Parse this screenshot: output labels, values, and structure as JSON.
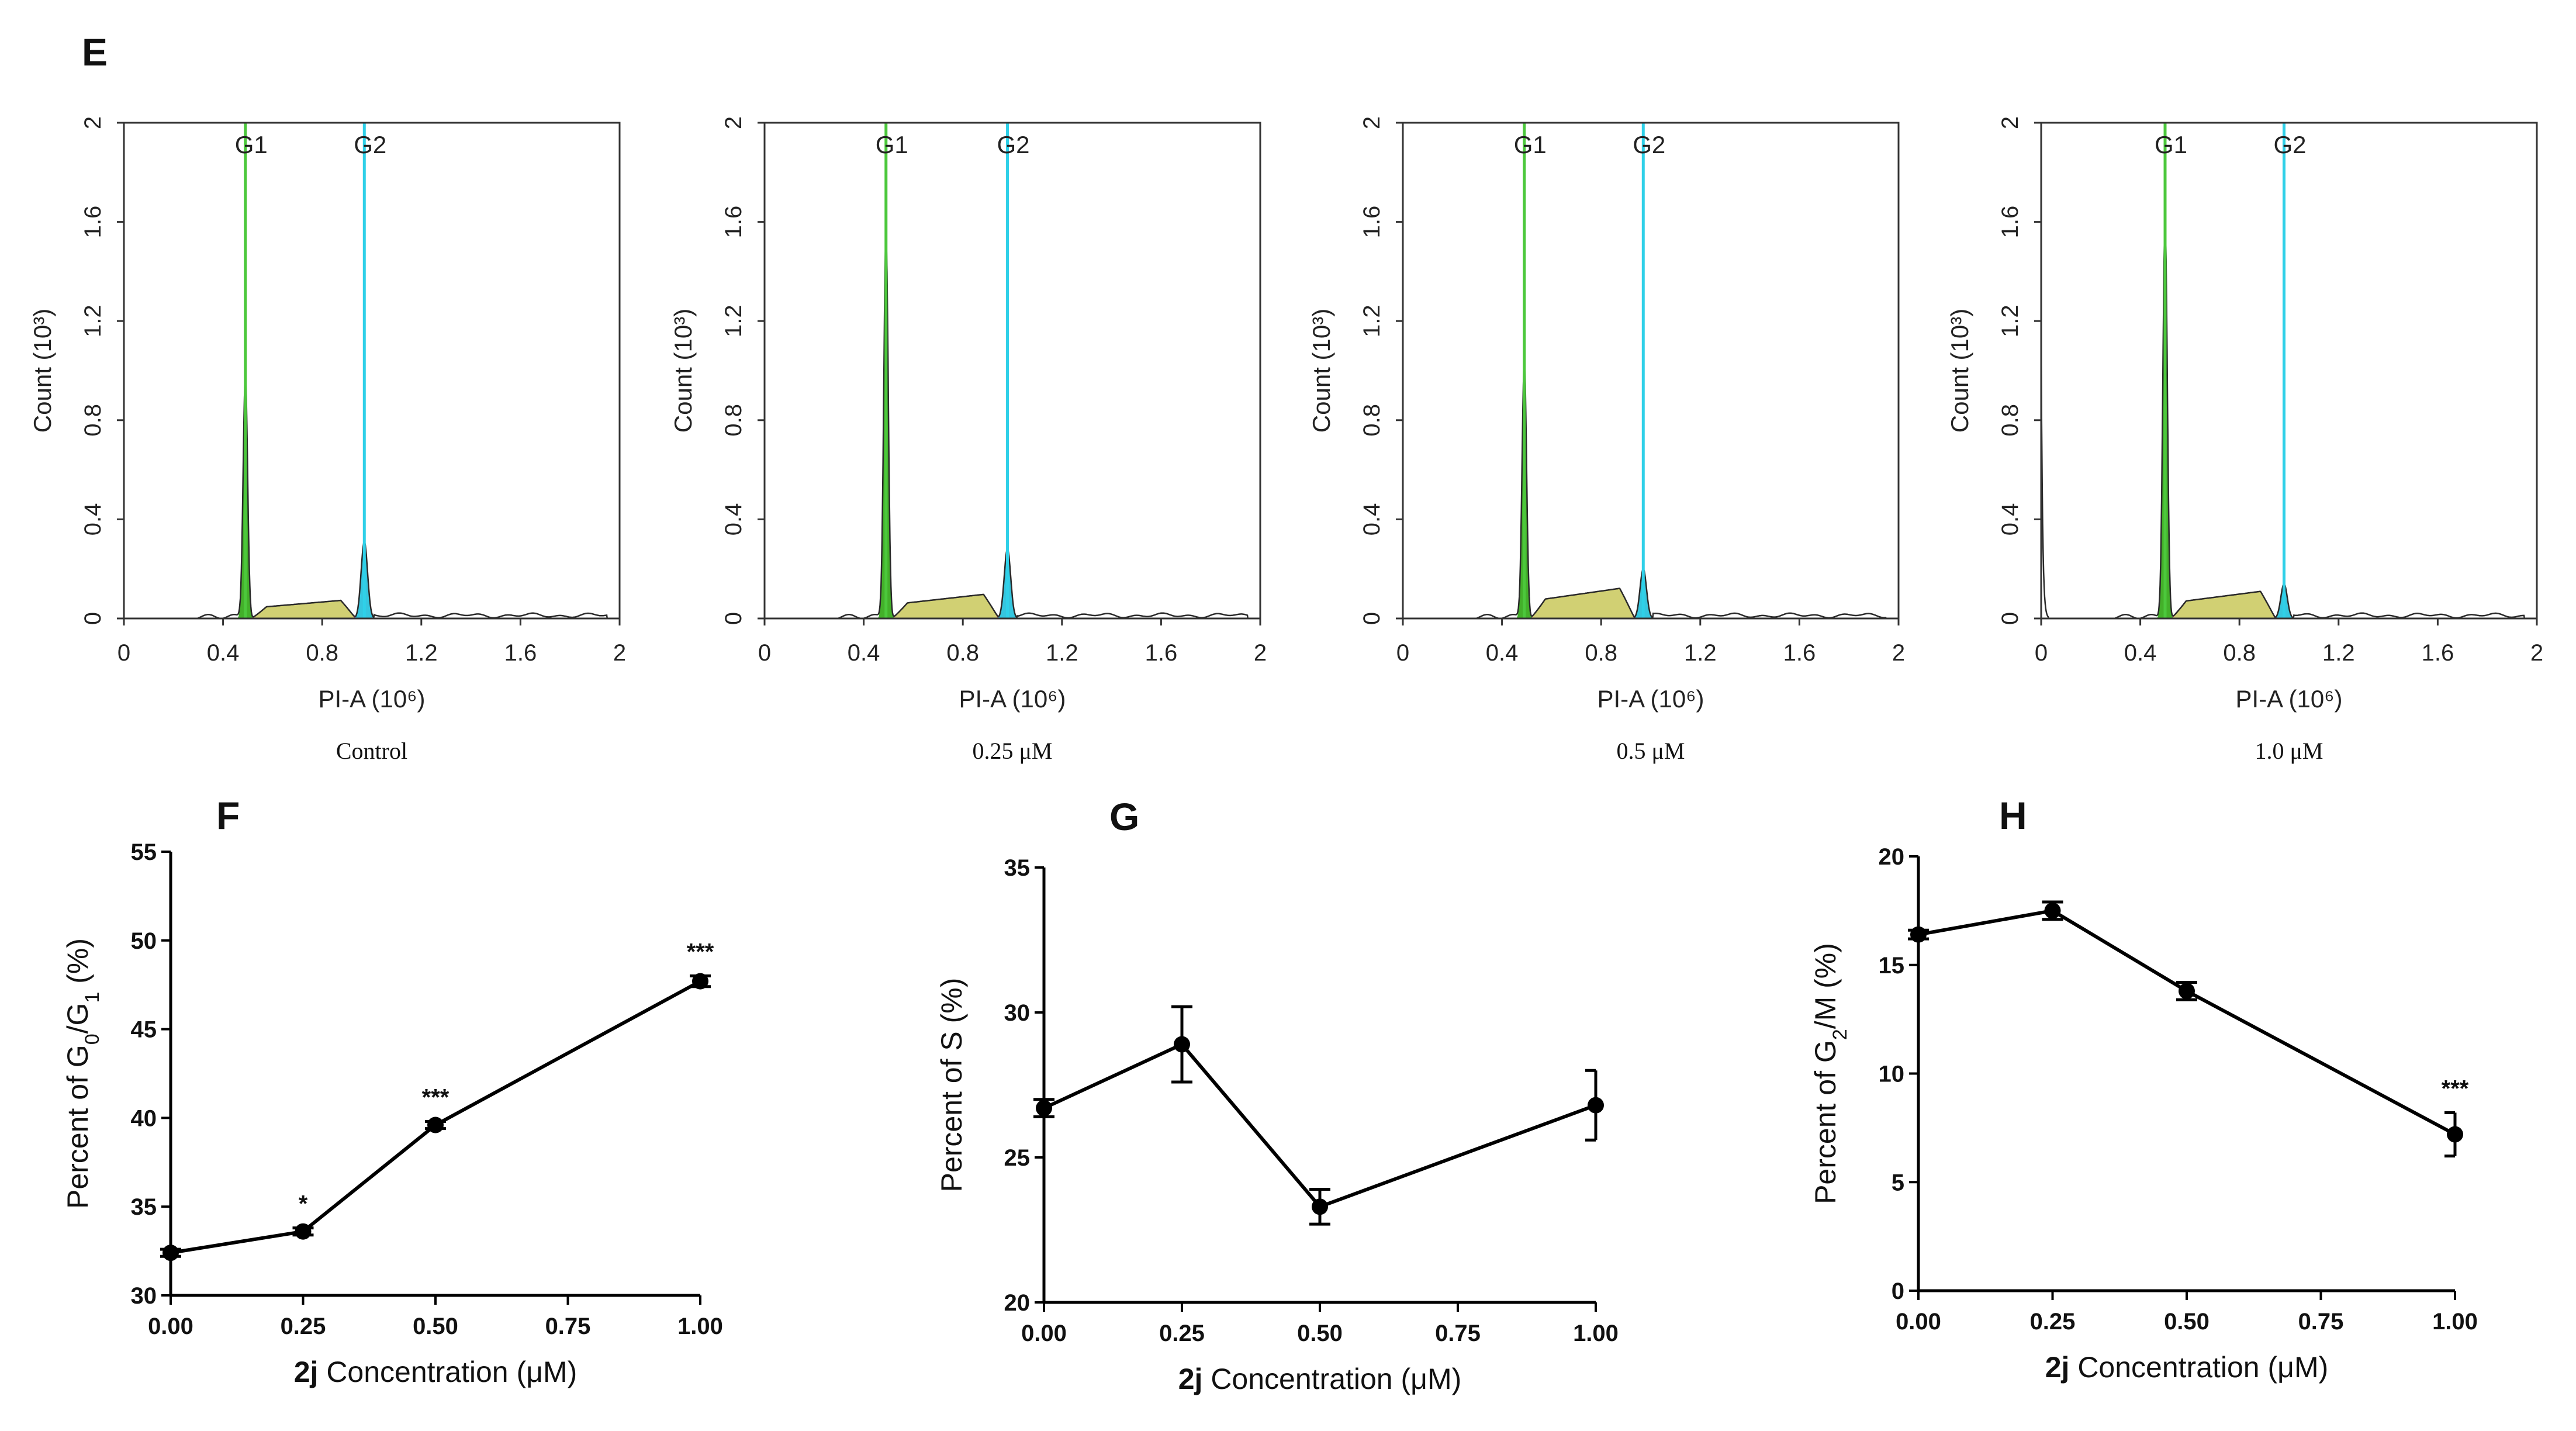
{
  "panel_e": {
    "label": "E",
    "ylabel": "Count (10³)",
    "xlabel": "PI-A (10⁶)",
    "gate_labels": [
      "G1",
      "G2"
    ],
    "y_ticks": [
      "0",
      "0.4",
      "0.8",
      "1.2",
      "1.6",
      "2"
    ],
    "x_ticks": [
      "0",
      "0.4",
      "0.8",
      "1.2",
      "1.6",
      "2"
    ],
    "captions": [
      "Control",
      "0.25 μM",
      "0.5 μM",
      "1.0 μM"
    ]
  },
  "panel_f": {
    "label": "F"
  },
  "panel_g": {
    "label": "G"
  },
  "panel_h": {
    "label": "H"
  },
  "colors": {
    "g1_fill": "#43b02a",
    "g2_fill": "#35c6df",
    "s_fill": "#c9c85a",
    "s_edge": "#b0306f",
    "g1_line": "#4cc83c",
    "g2_line": "#2fd0e8",
    "curve": "#2a2a2a"
  },
  "chart_data": [
    {
      "type": "area",
      "title": "Control",
      "xlabel": "PI-A (10⁶)",
      "ylabel": "Count (10³)",
      "xlim": [
        0,
        2
      ],
      "ylim": [
        0,
        2
      ],
      "g1_position": 0.49,
      "g2_position": 0.97,
      "g1_peak": 0.98,
      "g2_peak": 0.31,
      "s_phase_level": 0.06,
      "debris_spike": 0
    },
    {
      "type": "area",
      "title": "0.25 μM",
      "xlabel": "PI-A (10⁶)",
      "ylabel": "Count (10³)",
      "xlim": [
        0,
        2
      ],
      "ylim": [
        0,
        2
      ],
      "g1_position": 0.49,
      "g2_position": 0.98,
      "g1_peak": 1.54,
      "g2_peak": 0.28,
      "s_phase_level": 0.08,
      "debris_spike": 0
    },
    {
      "type": "area",
      "title": "0.5 μM",
      "xlabel": "PI-A (10⁶)",
      "ylabel": "Count (10³)",
      "xlim": [
        0,
        2
      ],
      "ylim": [
        0,
        2
      ],
      "g1_position": 0.49,
      "g2_position": 0.97,
      "g1_peak": 1.04,
      "g2_peak": 0.2,
      "s_phase_level": 0.1,
      "debris_spike": 0
    },
    {
      "type": "area",
      "title": "1.0 μM",
      "xlabel": "PI-A (10⁶)",
      "ylabel": "Count (10³)",
      "xlim": [
        0,
        2
      ],
      "ylim": [
        0,
        2
      ],
      "g1_position": 0.5,
      "g2_position": 0.98,
      "g1_peak": 1.6,
      "g2_peak": 0.14,
      "s_phase_level": 0.09,
      "debris_spike": 1.14
    },
    {
      "type": "line",
      "title": "F",
      "x": [
        0.0,
        0.25,
        0.5,
        1.0
      ],
      "y": [
        32.4,
        33.6,
        39.6,
        47.7
      ],
      "error": [
        0.2,
        0.2,
        0.2,
        0.3
      ],
      "significance": [
        "",
        "*",
        "***",
        "***"
      ],
      "xlim": [
        0,
        1
      ],
      "ylim": [
        30,
        55
      ],
      "x_ticks": [
        "0.00",
        "0.25",
        "0.50",
        "0.75",
        "1.00"
      ],
      "y_ticks": [
        "30",
        "35",
        "40",
        "45",
        "50",
        "55"
      ],
      "xlabel_bold": "2j",
      "xlabel_rest": " Concentration (μM)",
      "ylabel_parts": [
        "Percent of G",
        "0",
        "/G",
        "1",
        " (%)"
      ]
    },
    {
      "type": "line",
      "title": "G",
      "x": [
        0.0,
        0.25,
        0.5,
        1.0
      ],
      "y": [
        26.7,
        28.9,
        23.3,
        26.8
      ],
      "error": [
        0.3,
        1.3,
        0.6,
        1.2
      ],
      "significance": [
        "",
        "",
        "",
        ""
      ],
      "xlim": [
        0,
        1
      ],
      "ylim": [
        20,
        35
      ],
      "x_ticks": [
        "0.00",
        "0.25",
        "0.50",
        "0.75",
        "1.00"
      ],
      "y_ticks": [
        "20",
        "25",
        "30",
        "35"
      ],
      "xlabel_bold": "2j",
      "xlabel_rest": " Concentration (μM)",
      "ylabel_parts": [
        "Percent of S (%)"
      ]
    },
    {
      "type": "line",
      "title": "H",
      "x": [
        0.0,
        0.25,
        0.5,
        1.0
      ],
      "y": [
        16.4,
        17.5,
        13.8,
        7.2
      ],
      "error": [
        0.2,
        0.4,
        0.4,
        1.0
      ],
      "significance": [
        "",
        "",
        "",
        "***"
      ],
      "xlim": [
        0,
        1
      ],
      "ylim": [
        0,
        20
      ],
      "x_ticks": [
        "0.00",
        "0.25",
        "0.50",
        "0.75",
        "1.00"
      ],
      "y_ticks": [
        "0",
        "5",
        "10",
        "15",
        "20"
      ],
      "xlabel_bold": "2j",
      "xlabel_rest": " Concentration (μM)",
      "ylabel_parts": [
        "Percent of G",
        "2",
        "/M (%)"
      ]
    }
  ]
}
